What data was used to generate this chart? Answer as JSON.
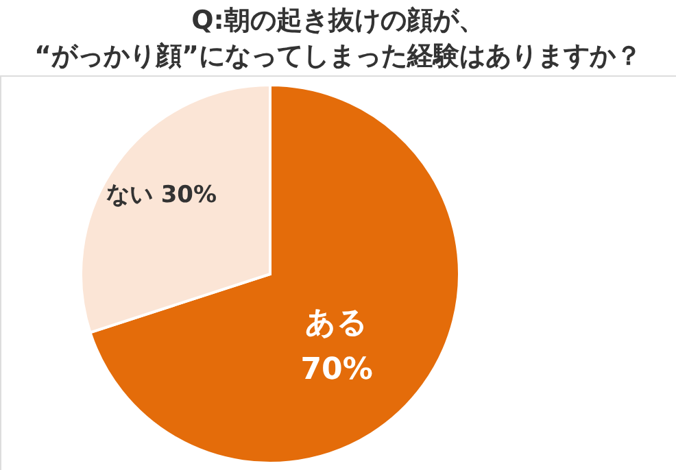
{
  "chart_data": {
    "type": "pie",
    "title": "Q:朝の起き抜けの顔が、\n“がっかり顔”になってしまった経験はありますか？",
    "categories": [
      "ある",
      "ない"
    ],
    "values": [
      70,
      30
    ],
    "colors": [
      "#e46c0a",
      "#fbe5d6"
    ],
    "value_labels": [
      "70%",
      "30%"
    ],
    "legend": false
  }
}
